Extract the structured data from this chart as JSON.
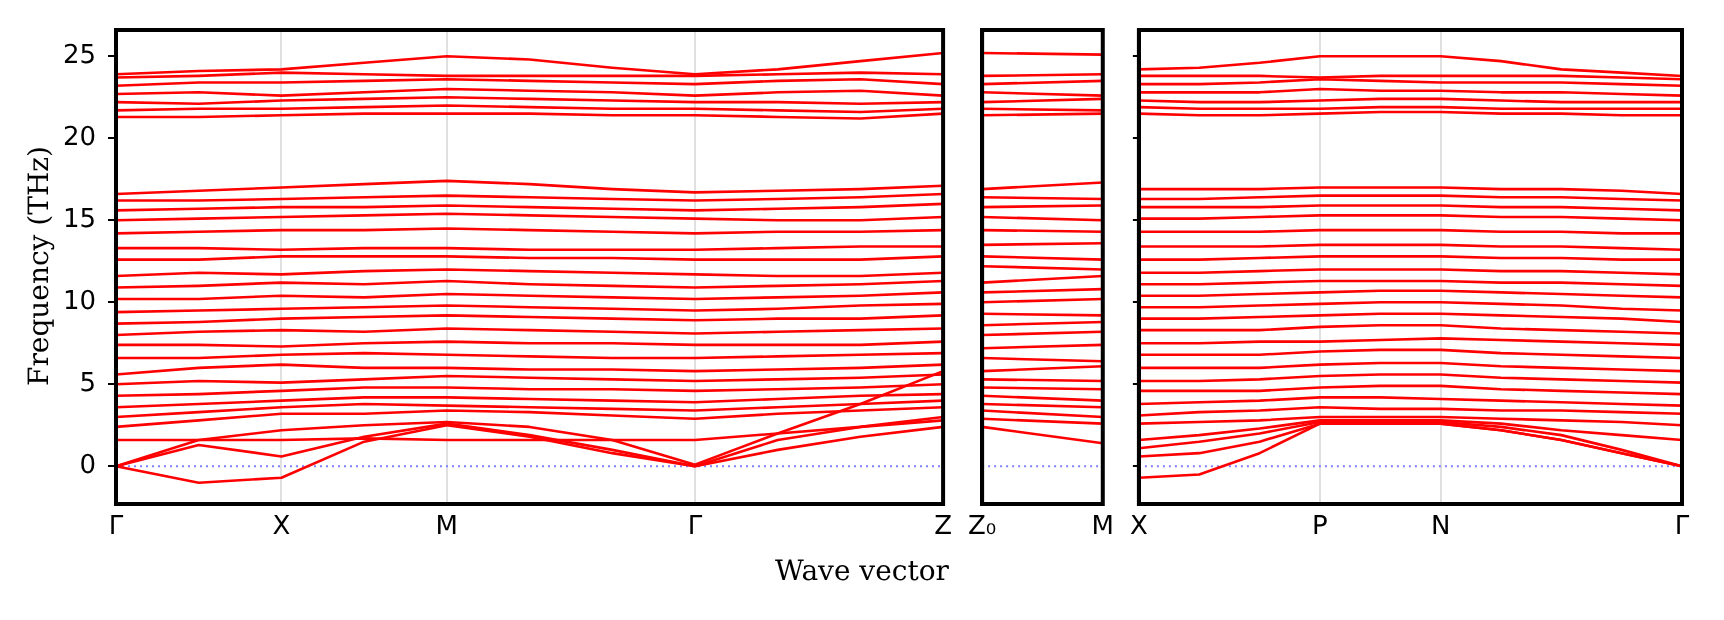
{
  "chart_data": [
    {
      "type": "line",
      "ylabel": "Frequency (THz)",
      "xlabel": "Wave vector",
      "grid": "x",
      "legend": false,
      "marker": "none",
      "categories": [
        "Γ",
        null,
        "X",
        null,
        "M",
        null,
        null,
        "Γ",
        null,
        null,
        "Z"
      ],
      "ylim": [
        -2.3,
        26.6
      ],
      "yticks": [
        0,
        5,
        10,
        15,
        20,
        25
      ],
      "ref_lines": [
        {
          "axis": "y",
          "value": 0,
          "label": null,
          "color": "#8080ff",
          "line_style": "dotted"
        }
      ],
      "series": [
        {
          "color": "#ff0000",
          "values": [
            0,
            -1.0,
            -0.7,
            1.5,
            2.5,
            1.8,
            0.8,
            0,
            1.0,
            1.8,
            2.4
          ]
        },
        {
          "color": "#ff0000",
          "values": [
            0,
            1.3,
            0.6,
            1.8,
            2.6,
            1.9,
            1.0,
            0,
            1.6,
            2.4,
            3.0
          ]
        },
        {
          "color": "#ff0000",
          "values": [
            0,
            1.6,
            2.2,
            2.5,
            2.7,
            2.4,
            1.6,
            0.1,
            2.0,
            3.8,
            5.8
          ]
        },
        {
          "color": "#ff0000",
          "values": [
            1.6,
            1.6,
            1.6,
            1.7,
            1.6,
            1.6,
            1.6,
            1.6,
            2.0,
            2.4,
            2.8
          ]
        },
        {
          "color": "#ff0000",
          "values": [
            2.4,
            2.8,
            3.2,
            3.2,
            3.4,
            3.3,
            3.1,
            2.9,
            3.2,
            3.4,
            3.6
          ]
        },
        {
          "color": "#ff0000",
          "values": [
            3.0,
            3.3,
            3.6,
            3.8,
            3.7,
            3.6,
            3.5,
            3.4,
            3.6,
            3.8,
            4.0
          ]
        },
        {
          "color": "#ff0000",
          "values": [
            3.6,
            3.8,
            4.0,
            4.2,
            4.2,
            4.1,
            4.0,
            3.9,
            4.1,
            4.3,
            4.4
          ]
        },
        {
          "color": "#ff0000",
          "values": [
            4.3,
            4.4,
            4.6,
            4.8,
            4.8,
            4.7,
            4.7,
            4.6,
            4.7,
            4.8,
            5.0
          ]
        },
        {
          "color": "#ff0000",
          "values": [
            5.0,
            5.2,
            5.1,
            5.3,
            5.5,
            5.4,
            5.3,
            5.2,
            5.3,
            5.4,
            5.6
          ]
        },
        {
          "color": "#ff0000",
          "values": [
            5.6,
            6.0,
            6.2,
            6.0,
            6.0,
            5.9,
            5.9,
            5.8,
            5.9,
            6.0,
            6.2
          ]
        },
        {
          "color": "#ff0000",
          "values": [
            6.6,
            6.6,
            6.8,
            6.9,
            6.8,
            6.7,
            6.6,
            6.6,
            6.7,
            6.8,
            6.9
          ]
        },
        {
          "color": "#ff0000",
          "values": [
            7.4,
            7.4,
            7.3,
            7.5,
            7.6,
            7.5,
            7.5,
            7.4,
            7.4,
            7.4,
            7.6
          ]
        },
        {
          "color": "#ff0000",
          "values": [
            8.0,
            8.2,
            8.3,
            8.2,
            8.4,
            8.3,
            8.2,
            8.1,
            8.2,
            8.3,
            8.4
          ]
        },
        {
          "color": "#ff0000",
          "values": [
            8.7,
            8.8,
            9.0,
            9.1,
            9.2,
            9.1,
            9.0,
            8.9,
            9.0,
            9.0,
            9.2
          ]
        },
        {
          "color": "#ff0000",
          "values": [
            9.4,
            9.5,
            9.6,
            9.7,
            9.8,
            9.7,
            9.6,
            9.5,
            9.6,
            9.8,
            9.9
          ]
        },
        {
          "color": "#ff0000",
          "values": [
            10.2,
            10.2,
            10.4,
            10.3,
            10.5,
            10.4,
            10.3,
            10.2,
            10.3,
            10.4,
            10.6
          ]
        },
        {
          "color": "#ff0000",
          "values": [
            10.9,
            11.0,
            11.2,
            11.1,
            11.3,
            11.1,
            11.0,
            10.9,
            11.0,
            11.1,
            11.3
          ]
        },
        {
          "color": "#ff0000",
          "values": [
            11.6,
            11.8,
            11.7,
            11.9,
            12.0,
            11.9,
            11.8,
            11.7,
            11.6,
            11.6,
            11.8
          ]
        },
        {
          "color": "#ff0000",
          "values": [
            12.6,
            12.6,
            12.8,
            12.8,
            12.8,
            12.7,
            12.7,
            12.6,
            12.6,
            12.6,
            12.8
          ]
        },
        {
          "color": "#ff0000",
          "values": [
            13.3,
            13.3,
            13.2,
            13.3,
            13.3,
            13.2,
            13.2,
            13.2,
            13.3,
            13.4,
            13.4
          ]
        },
        {
          "color": "#ff0000",
          "values": [
            14.2,
            14.3,
            14.4,
            14.4,
            14.5,
            14.4,
            14.3,
            14.2,
            14.3,
            14.3,
            14.4
          ]
        },
        {
          "color": "#ff0000",
          "values": [
            15.0,
            15.1,
            15.2,
            15.3,
            15.4,
            15.3,
            15.2,
            15.1,
            15.0,
            15.0,
            15.2
          ]
        },
        {
          "color": "#ff0000",
          "values": [
            15.6,
            15.7,
            15.8,
            15.8,
            15.9,
            15.8,
            15.7,
            15.6,
            15.7,
            15.8,
            16.0
          ]
        },
        {
          "color": "#ff0000",
          "values": [
            16.2,
            16.2,
            16.3,
            16.4,
            16.5,
            16.4,
            16.3,
            16.2,
            16.3,
            16.4,
            16.6
          ]
        },
        {
          "color": "#ff0000",
          "values": [
            16.6,
            16.8,
            17.0,
            17.2,
            17.4,
            17.2,
            16.9,
            16.7,
            16.8,
            16.9,
            17.1
          ]
        },
        {
          "color": "#ff0000",
          "values": [
            21.3,
            21.3,
            21.4,
            21.5,
            21.5,
            21.5,
            21.4,
            21.4,
            21.3,
            21.2,
            21.5
          ]
        },
        {
          "color": "#ff0000",
          "values": [
            21.7,
            21.8,
            21.8,
            21.9,
            22.0,
            21.9,
            21.8,
            21.8,
            21.7,
            21.6,
            21.8
          ]
        },
        {
          "color": "#ff0000",
          "values": [
            22.2,
            22.1,
            22.3,
            22.4,
            22.5,
            22.4,
            22.3,
            22.2,
            22.2,
            22.1,
            22.2
          ]
        },
        {
          "color": "#ff0000",
          "values": [
            22.7,
            22.8,
            22.6,
            22.8,
            23.0,
            22.9,
            22.8,
            22.6,
            22.8,
            22.9,
            22.6
          ]
        },
        {
          "color": "#ff0000",
          "values": [
            23.2,
            23.4,
            23.4,
            23.5,
            23.6,
            23.5,
            23.4,
            23.3,
            23.5,
            23.6,
            23.3
          ]
        },
        {
          "color": "#ff0000",
          "values": [
            23.7,
            23.8,
            24.0,
            23.9,
            23.8,
            23.8,
            23.8,
            23.8,
            23.9,
            24.0,
            23.9
          ]
        },
        {
          "color": "#ff0000",
          "values": [
            23.9,
            24.1,
            24.2,
            24.6,
            25.0,
            24.8,
            24.3,
            23.9,
            24.2,
            24.7,
            25.2
          ]
        }
      ]
    },
    {
      "type": "line",
      "legend": false,
      "marker": "none",
      "tick_labels": "x",
      "categories": [
        "Z₀",
        "M"
      ],
      "ylim": [
        -2.3,
        26.6
      ],
      "ref_lines": [
        {
          "axis": "y",
          "value": 0,
          "label": null,
          "color": "#8080ff",
          "line_style": "dotted"
        }
      ],
      "series": [
        {
          "color": "#ff0000",
          "values": [
            2.4,
            1.4
          ]
        },
        {
          "color": "#ff0000",
          "values": [
            2.9,
            2.6
          ]
        },
        {
          "color": "#ff0000",
          "values": [
            3.4,
            3.0
          ]
        },
        {
          "color": "#ff0000",
          "values": [
            3.8,
            3.6
          ]
        },
        {
          "color": "#ff0000",
          "values": [
            4.3,
            4.0
          ]
        },
        {
          "color": "#ff0000",
          "values": [
            4.8,
            4.7
          ]
        },
        {
          "color": "#ff0000",
          "values": [
            5.3,
            5.2
          ]
        },
        {
          "color": "#ff0000",
          "values": [
            5.8,
            6.1
          ]
        },
        {
          "color": "#ff0000",
          "values": [
            6.6,
            6.4
          ]
        },
        {
          "color": "#ff0000",
          "values": [
            7.2,
            7.4
          ]
        },
        {
          "color": "#ff0000",
          "values": [
            8.0,
            8.2
          ]
        },
        {
          "color": "#ff0000",
          "values": [
            8.6,
            8.8
          ]
        },
        {
          "color": "#ff0000",
          "values": [
            9.3,
            9.2
          ]
        },
        {
          "color": "#ff0000",
          "values": [
            10.0,
            10.2
          ]
        },
        {
          "color": "#ff0000",
          "values": [
            10.6,
            10.8
          ]
        },
        {
          "color": "#ff0000",
          "values": [
            11.2,
            11.6
          ]
        },
        {
          "color": "#ff0000",
          "values": [
            12.2,
            12.0
          ]
        },
        {
          "color": "#ff0000",
          "values": [
            12.8,
            12.6
          ]
        },
        {
          "color": "#ff0000",
          "values": [
            13.5,
            13.6
          ]
        },
        {
          "color": "#ff0000",
          "values": [
            14.4,
            14.3
          ]
        },
        {
          "color": "#ff0000",
          "values": [
            15.2,
            15.0
          ]
        },
        {
          "color": "#ff0000",
          "values": [
            15.8,
            15.9
          ]
        },
        {
          "color": "#ff0000",
          "values": [
            16.4,
            16.3
          ]
        },
        {
          "color": "#ff0000",
          "values": [
            16.9,
            17.3
          ]
        },
        {
          "color": "#ff0000",
          "values": [
            21.4,
            21.5
          ]
        },
        {
          "color": "#ff0000",
          "values": [
            21.8,
            21.7
          ]
        },
        {
          "color": "#ff0000",
          "values": [
            22.2,
            22.4
          ]
        },
        {
          "color": "#ff0000",
          "values": [
            22.8,
            22.6
          ]
        },
        {
          "color": "#ff0000",
          "values": [
            23.3,
            23.5
          ]
        },
        {
          "color": "#ff0000",
          "values": [
            23.8,
            23.9
          ]
        },
        {
          "color": "#ff0000",
          "values": [
            25.2,
            25.1
          ]
        }
      ]
    },
    {
      "type": "line",
      "grid": "x",
      "legend": false,
      "marker": "none",
      "tick_labels": "x",
      "categories": [
        "X",
        null,
        null,
        "P",
        null,
        "N",
        null,
        null,
        null,
        "Γ"
      ],
      "ylim": [
        -2.3,
        26.6
      ],
      "yticks": [
        {
          "value": 0,
          "label": null
        },
        {
          "value": 5,
          "label": null
        },
        {
          "value": 10,
          "label": null
        },
        {
          "value": 15,
          "label": null
        },
        {
          "value": 20,
          "label": null
        },
        {
          "value": 25,
          "label": null
        }
      ],
      "ref_lines": [
        {
          "axis": "y",
          "value": 0,
          "label": null,
          "color": "#8080ff",
          "line_style": "dotted"
        }
      ],
      "series": [
        {
          "color": "#ff0000",
          "values": [
            -0.7,
            -0.5,
            0.8,
            2.6,
            2.6,
            2.6,
            2.2,
            1.6,
            0.8,
            0
          ]
        },
        {
          "color": "#ff0000",
          "values": [
            0.6,
            0.8,
            1.5,
            2.6,
            2.6,
            2.6,
            2.2,
            1.6,
            0.8,
            0
          ]
        },
        {
          "color": "#ff0000",
          "values": [
            1.1,
            1.5,
            2.0,
            2.7,
            2.7,
            2.7,
            2.4,
            1.9,
            1.0,
            0
          ]
        },
        {
          "color": "#ff0000",
          "values": [
            1.6,
            1.9,
            2.3,
            2.8,
            2.8,
            2.8,
            2.6,
            2.2,
            1.9,
            1.6
          ]
        },
        {
          "color": "#ff0000",
          "values": [
            2.6,
            2.7,
            2.8,
            3.0,
            3.0,
            3.0,
            2.9,
            2.8,
            2.7,
            2.5
          ]
        },
        {
          "color": "#ff0000",
          "values": [
            3.1,
            3.3,
            3.4,
            3.6,
            3.5,
            3.5,
            3.4,
            3.4,
            3.3,
            3.2
          ]
        },
        {
          "color": "#ff0000",
          "values": [
            3.8,
            3.9,
            4.0,
            4.2,
            4.2,
            4.1,
            4.0,
            3.9,
            3.8,
            3.7
          ]
        },
        {
          "color": "#ff0000",
          "values": [
            4.6,
            4.6,
            4.6,
            4.8,
            4.9,
            4.9,
            4.7,
            4.6,
            4.5,
            4.4
          ]
        },
        {
          "color": "#ff0000",
          "values": [
            5.2,
            5.2,
            5.3,
            5.5,
            5.6,
            5.6,
            5.4,
            5.3,
            5.2,
            5.1
          ]
        },
        {
          "color": "#ff0000",
          "values": [
            6.0,
            6.0,
            6.0,
            6.2,
            6.3,
            6.3,
            6.1,
            6.0,
            5.9,
            5.8
          ]
        },
        {
          "color": "#ff0000",
          "values": [
            6.8,
            6.8,
            6.8,
            7.0,
            7.1,
            7.1,
            6.9,
            6.8,
            6.7,
            6.6
          ]
        },
        {
          "color": "#ff0000",
          "values": [
            7.5,
            7.5,
            7.6,
            7.6,
            7.7,
            7.8,
            7.7,
            7.6,
            7.5,
            7.4
          ]
        },
        {
          "color": "#ff0000",
          "values": [
            8.3,
            8.3,
            8.3,
            8.5,
            8.6,
            8.6,
            8.4,
            8.3,
            8.2,
            8.1
          ]
        },
        {
          "color": "#ff0000",
          "values": [
            9.0,
            9.0,
            9.1,
            9.2,
            9.3,
            9.3,
            9.2,
            9.1,
            9.0,
            8.8
          ]
        },
        {
          "color": "#ff0000",
          "values": [
            9.7,
            9.7,
            9.8,
            9.9,
            10.0,
            10.0,
            9.9,
            9.8,
            9.6,
            9.5
          ]
        },
        {
          "color": "#ff0000",
          "values": [
            10.4,
            10.4,
            10.5,
            10.6,
            10.7,
            10.7,
            10.6,
            10.5,
            10.4,
            10.3
          ]
        },
        {
          "color": "#ff0000",
          "values": [
            11.1,
            11.1,
            11.2,
            11.3,
            11.3,
            11.3,
            11.2,
            11.2,
            11.1,
            11.0
          ]
        },
        {
          "color": "#ff0000",
          "values": [
            11.8,
            11.8,
            11.9,
            12.0,
            12.0,
            12.0,
            11.9,
            11.9,
            11.8,
            11.7
          ]
        },
        {
          "color": "#ff0000",
          "values": [
            12.6,
            12.6,
            12.7,
            12.8,
            12.8,
            12.8,
            12.7,
            12.7,
            12.6,
            12.6
          ]
        },
        {
          "color": "#ff0000",
          "values": [
            13.4,
            13.4,
            13.4,
            13.5,
            13.5,
            13.5,
            13.4,
            13.4,
            13.3,
            13.2
          ]
        },
        {
          "color": "#ff0000",
          "values": [
            14.3,
            14.3,
            14.3,
            14.4,
            14.4,
            14.4,
            14.3,
            14.3,
            14.2,
            14.2
          ]
        },
        {
          "color": "#ff0000",
          "values": [
            15.1,
            15.1,
            15.2,
            15.3,
            15.3,
            15.3,
            15.2,
            15.2,
            15.1,
            15.0
          ]
        },
        {
          "color": "#ff0000",
          "values": [
            15.8,
            15.8,
            15.8,
            15.9,
            15.9,
            15.9,
            15.8,
            15.8,
            15.7,
            15.6
          ]
        },
        {
          "color": "#ff0000",
          "values": [
            16.3,
            16.3,
            16.4,
            16.5,
            16.5,
            16.5,
            16.4,
            16.4,
            16.3,
            16.2
          ]
        },
        {
          "color": "#ff0000",
          "values": [
            16.9,
            16.9,
            16.9,
            17.0,
            17.0,
            17.0,
            16.9,
            16.9,
            16.8,
            16.6
          ]
        },
        {
          "color": "#ff0000",
          "values": [
            21.5,
            21.4,
            21.4,
            21.5,
            21.6,
            21.6,
            21.5,
            21.5,
            21.4,
            21.4
          ]
        },
        {
          "color": "#ff0000",
          "values": [
            21.9,
            21.8,
            21.8,
            21.8,
            21.9,
            21.9,
            21.8,
            21.8,
            21.8,
            21.8
          ]
        },
        {
          "color": "#ff0000",
          "values": [
            22.3,
            22.2,
            22.2,
            22.3,
            22.4,
            22.4,
            22.3,
            22.2,
            22.2,
            22.2
          ]
        },
        {
          "color": "#ff0000",
          "values": [
            22.8,
            22.8,
            22.8,
            23.0,
            22.9,
            22.9,
            22.8,
            22.8,
            22.7,
            22.6
          ]
        },
        {
          "color": "#ff0000",
          "values": [
            23.3,
            23.3,
            23.4,
            23.6,
            23.5,
            23.4,
            23.4,
            23.4,
            23.3,
            23.2
          ]
        },
        {
          "color": "#ff0000",
          "values": [
            23.8,
            23.8,
            23.8,
            23.7,
            23.8,
            23.8,
            23.8,
            23.8,
            23.7,
            23.6
          ]
        },
        {
          "color": "#ff0000",
          "values": [
            24.2,
            24.3,
            24.6,
            25.0,
            25.0,
            25.0,
            24.7,
            24.2,
            24.0,
            23.8
          ]
        }
      ]
    }
  ]
}
